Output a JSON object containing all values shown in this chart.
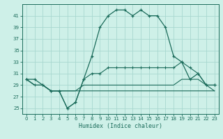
{
  "xlabel": "Humidex (Indice chaleur)",
  "background_color": "#cef0e8",
  "grid_color": "#a8d8d0",
  "line_color": "#1a6b5a",
  "x_values": [
    0,
    1,
    2,
    3,
    4,
    5,
    6,
    7,
    8,
    9,
    10,
    11,
    12,
    13,
    14,
    15,
    16,
    17,
    18,
    19,
    20,
    21,
    22,
    23
  ],
  "series1": [
    30,
    30,
    29,
    28,
    28,
    25,
    26,
    30,
    34,
    39,
    41,
    42,
    42,
    41,
    42,
    41,
    41,
    39,
    34,
    33,
    30,
    31,
    29,
    29
  ],
  "series2": [
    30,
    29,
    29,
    28,
    28,
    25,
    26,
    30,
    31,
    31,
    32,
    32,
    32,
    32,
    32,
    32,
    32,
    32,
    32,
    33,
    32,
    31,
    29,
    29
  ],
  "series3": [
    30,
    29,
    29,
    28,
    28,
    28,
    28,
    29,
    29,
    29,
    29,
    29,
    29,
    29,
    29,
    29,
    29,
    29,
    29,
    30,
    30,
    30,
    29,
    28
  ],
  "series4": [
    30,
    29,
    29,
    28,
    28,
    28,
    28,
    28,
    28,
    28,
    28,
    28,
    28,
    28,
    28,
    28,
    28,
    28,
    28,
    28,
    28,
    28,
    28,
    28
  ],
  "ylim": [
    24.0,
    43.0
  ],
  "yticks": [
    25,
    27,
    29,
    31,
    33,
    35,
    37,
    39,
    41
  ],
  "xlim": [
    -0.5,
    23.5
  ],
  "xticks": [
    0,
    1,
    2,
    3,
    4,
    5,
    6,
    7,
    8,
    9,
    10,
    11,
    12,
    13,
    14,
    15,
    16,
    17,
    18,
    19,
    20,
    21,
    22,
    23
  ],
  "figsize": [
    3.2,
    2.0
  ],
  "dpi": 100
}
